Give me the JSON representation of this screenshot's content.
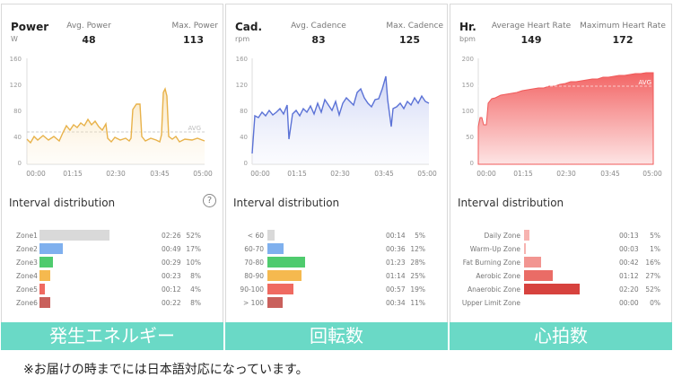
{
  "panels": [
    {
      "title": "Power",
      "unit": "W",
      "avg_label": "Avg. Power",
      "avg_value": "48",
      "max_label": "Max. Power",
      "max_value": "113",
      "y_ticks": [
        "160",
        "120",
        "80",
        "40",
        "0"
      ],
      "x_ticks": [
        "00:00",
        "01:15",
        "02:30",
        "03:45",
        "05:00"
      ],
      "avg_marker": "AVG",
      "interval_title": "Interval distribution",
      "help_icon": "?",
      "zones": [
        {
          "label": "Zone1",
          "time": "02:26",
          "pct": "52%",
          "frac": 0.52,
          "color": "#d9d9d9"
        },
        {
          "label": "Zone2",
          "time": "00:49",
          "pct": "17%",
          "frac": 0.17,
          "color": "#7fb0ee"
        },
        {
          "label": "Zone3",
          "time": "00:29",
          "pct": "10%",
          "frac": 0.1,
          "color": "#4fcb6e"
        },
        {
          "label": "Zone4",
          "time": "00:23",
          "pct": "8%",
          "frac": 0.08,
          "color": "#f5b94f"
        },
        {
          "label": "Zone5",
          "time": "00:12",
          "pct": "4%",
          "frac": 0.04,
          "color": "#ef6a61"
        },
        {
          "label": "Zone6",
          "time": "00:22",
          "pct": "8%",
          "frac": 0.08,
          "color": "#c9605c"
        }
      ],
      "footer": "発生エネルギー",
      "chart_color": "#e8b24a"
    },
    {
      "title": "Cad.",
      "unit": "rpm",
      "avg_label": "Avg. Cadence",
      "avg_value": "83",
      "max_label": "Max. Cadence",
      "max_value": "125",
      "y_ticks": [
        "160",
        "120",
        "80",
        "40",
        "0"
      ],
      "x_ticks": [
        "00:00",
        "01:15",
        "02:30",
        "03:45",
        "05:00"
      ],
      "interval_title": "Interval distribution",
      "zones": [
        {
          "label": "< 60",
          "time": "00:14",
          "pct": "5%",
          "frac": 0.05,
          "color": "#d9d9d9"
        },
        {
          "label": "60-70",
          "time": "00:36",
          "pct": "12%",
          "frac": 0.12,
          "color": "#7fb0ee"
        },
        {
          "label": "70-80",
          "time": "01:23",
          "pct": "28%",
          "frac": 0.28,
          "color": "#4fcb6e"
        },
        {
          "label": "80-90",
          "time": "01:14",
          "pct": "25%",
          "frac": 0.25,
          "color": "#f5b94f"
        },
        {
          "label": "90-100",
          "time": "00:57",
          "pct": "19%",
          "frac": 0.19,
          "color": "#ef6a61"
        },
        {
          "label": "> 100",
          "time": "00:34",
          "pct": "11%",
          "frac": 0.11,
          "color": "#c9605c"
        }
      ],
      "footer": "回転数",
      "chart_color": "#5b72d6"
    },
    {
      "title": "Hr.",
      "unit": "bpm",
      "avg_label": "Average Heart Rate",
      "avg_value": "149",
      "max_label": "Maximum Heart Rate",
      "max_value": "172",
      "y_ticks": [
        "200",
        "150",
        "100",
        "50",
        "0"
      ],
      "x_ticks": [
        "00:00",
        "01:15",
        "02:30",
        "03:45",
        "05:00"
      ],
      "avg_marker": "AVG",
      "interval_title": "Interval distribution",
      "zones": [
        {
          "label": "Daily Zone",
          "time": "00:13",
          "pct": "5%",
          "frac": 0.05,
          "color": "#f7b3b0"
        },
        {
          "label": "Warm-Up Zone",
          "time": "00:03",
          "pct": "1%",
          "frac": 0.01,
          "color": "#f7b3b0"
        },
        {
          "label": "Fat Burning Zone",
          "time": "00:42",
          "pct": "16%",
          "frac": 0.16,
          "color": "#f29591"
        },
        {
          "label": "Aerobic Zone",
          "time": "01:12",
          "pct": "27%",
          "frac": 0.27,
          "color": "#ea6c66"
        },
        {
          "label": "Anaerobic Zone",
          "time": "02:20",
          "pct": "52%",
          "frac": 0.52,
          "color": "#d7423e"
        },
        {
          "label": "Upper Limit Zone",
          "time": "00:00",
          "pct": "0%",
          "frac": 0.0,
          "color": "#c0302d"
        }
      ],
      "footer": "心拍数",
      "chart_color": "#f05a5a"
    }
  ],
  "note": "※お届けの時までには日本語対応になっています。"
}
